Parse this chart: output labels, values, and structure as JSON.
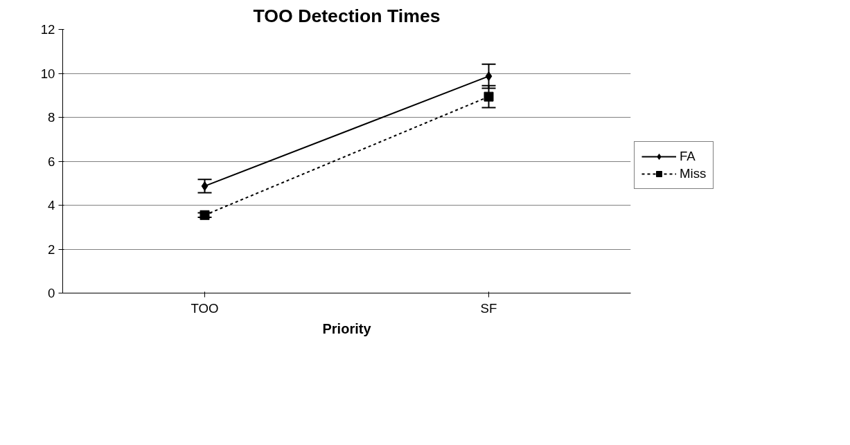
{
  "chart_data": {
    "type": "line",
    "title": "TOO Detection Times",
    "xlabel": "Priority",
    "categories": [
      "TOO",
      "SF"
    ],
    "series": [
      {
        "name": "FA",
        "color": "#000000",
        "values": [
          4.87,
          9.87
        ],
        "errors": [
          0.3,
          0.55
        ],
        "marker": "diamond",
        "line_style": "solid"
      },
      {
        "name": "Miss",
        "color": "#000000",
        "values": [
          3.55,
          8.94
        ],
        "errors": [
          0.1,
          0.5
        ],
        "marker": "square",
        "line_style": "dashed"
      }
    ],
    "ylim": [
      0,
      12
    ],
    "yticks": [
      0,
      2,
      4,
      6,
      8,
      10,
      12
    ],
    "grid": "y",
    "legend": "right"
  }
}
